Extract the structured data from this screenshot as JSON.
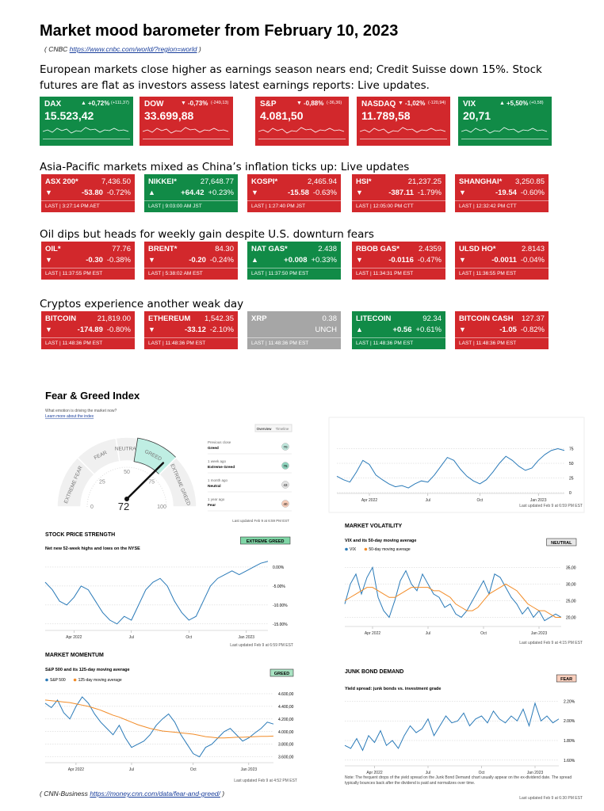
{
  "title": "Market mood barometer from February 10, 2023",
  "source_top": {
    "open": "( CNBC",
    "url": "https://www.cnbc.com/world/?region=world",
    "close": ")"
  },
  "sections": [
    {
      "heading": "European markets close higher as earnings season nears end; Credit Suisse down 15%. Stock futures are flat as investors assess latest earnings reports: Live updates.",
      "tiles": [
        {
          "name": "DAX",
          "arrow": "▲",
          "change_pct": "+0,72%",
          "change_abs": "(+111,37)",
          "value": "15.523,42",
          "color": "#118b47"
        },
        {
          "name": "DOW",
          "arrow": "▼",
          "change_pct": "-0,73%",
          "change_abs": "(-249,13)",
          "value": "33.699,88",
          "color": "#d2282c"
        },
        {
          "name": "S&P",
          "arrow": "▼",
          "change_pct": "-0,88%",
          "change_abs": "(-36,36)",
          "value": "4.081,50",
          "color": "#d2282c"
        },
        {
          "name": "NASDAQ",
          "arrow": "▼",
          "change_pct": "-1,02%",
          "change_abs": "(-120,94)",
          "value": "11.789,58",
          "color": "#d2282c"
        },
        {
          "name": "VIX",
          "arrow": "▲",
          "change_pct": "+5,50%",
          "change_abs": "(+0,58)",
          "value": "20,71",
          "color": "#118b47"
        }
      ]
    },
    {
      "heading": "Asia-Pacific markets mixed as China’s inflation ticks up: Live updates",
      "tiles": [
        {
          "name": "ASX 200*",
          "value": "7,436.50",
          "arrow": "▼",
          "change": "-53.80",
          "pct": "-0.72%",
          "last": "LAST | 3:27:14 PM AET",
          "color": "#d2282c"
        },
        {
          "name": "NIKKEI*",
          "value": "27,648.77",
          "arrow": "▲",
          "change": "+64.42",
          "pct": "+0.23%",
          "last": "LAST | 9:03:00 AM JST",
          "color": "#118b47"
        },
        {
          "name": "KOSPI*",
          "value": "2,465.94",
          "arrow": "▼",
          "change": "-15.58",
          "pct": "-0.63%",
          "last": "LAST | 1:27:40 PM JST",
          "color": "#d2282c"
        },
        {
          "name": "HSI*",
          "value": "21,237.25",
          "arrow": "▼",
          "change": "-387.11",
          "pct": "-1.79%",
          "last": "LAST | 12:05:00 PM CTT",
          "color": "#d2282c"
        },
        {
          "name": "SHANGHAI*",
          "value": "3,250.85",
          "arrow": "▼",
          "change": "-19.54",
          "pct": "-0.60%",
          "last": "LAST | 12:32:42 PM CTT",
          "color": "#d2282c"
        }
      ]
    },
    {
      "heading": "Oil dips but heads for weekly gain despite U.S. downturn fears",
      "tiles": [
        {
          "name": "OIL*",
          "value": "77.76",
          "arrow": "▼",
          "change": "-0.30",
          "pct": "-0.38%",
          "last": "LAST | 11:37:55 PM EST",
          "color": "#d2282c"
        },
        {
          "name": "BRENT*",
          "value": "84.30",
          "arrow": "▼",
          "change": "-0.20",
          "pct": "-0.24%",
          "last": "LAST | 5:38:02 AM EST",
          "color": "#d2282c"
        },
        {
          "name": "NAT GAS*",
          "value": "2.438",
          "arrow": "▲",
          "change": "+0.008",
          "pct": "+0.33%",
          "last": "LAST | 11:37:50 PM EST",
          "color": "#118b47"
        },
        {
          "name": "RBOB GAS*",
          "value": "2.4359",
          "arrow": "▼",
          "change": "-0.0116",
          "pct": "-0.47%",
          "last": "LAST | 11:34:31 PM EST",
          "color": "#d2282c"
        },
        {
          "name": "ULSD HO*",
          "value": "2.8143",
          "arrow": "▼",
          "change": "-0.0011",
          "pct": "-0.04%",
          "last": "LAST | 11:36:55 PM EST",
          "color": "#d2282c"
        }
      ]
    },
    {
      "heading": "Cryptos experience another weak day",
      "tiles": [
        {
          "name": "BITCOIN",
          "value": "21,819.00",
          "arrow": "▼",
          "change": "-174.89",
          "pct": "-0.80%",
          "last": "LAST | 11:48:36 PM EST",
          "color": "#d2282c"
        },
        {
          "name": "ETHEREUM",
          "value": "1,542.35",
          "arrow": "▼",
          "change": "-33.12",
          "pct": "-2.10%",
          "last": "LAST | 11:48:36 PM EST",
          "color": "#d2282c"
        },
        {
          "name": "XRP",
          "value": "0.38",
          "change": "UNCH",
          "last": "LAST | 11:48:36 PM EST",
          "color": "#a6a6a6"
        },
        {
          "name": "LITECOIN",
          "value": "92.34",
          "arrow": "▲",
          "change": "+0.56",
          "pct": "+0.61%",
          "last": "LAST | 11:48:36 PM EST",
          "color": "#118b47"
        },
        {
          "name": "BITCOIN CASH",
          "value": "127.37",
          "arrow": "▼",
          "change": "-1.05",
          "pct": "-0.82%",
          "last": "LAST | 11:48:36 PM EST",
          "color": "#d2282c"
        }
      ]
    }
  ],
  "fear_greed": {
    "title": "Fear & Greed Index",
    "subtitle": "What emotion is driving the market now?",
    "link": "Learn more about the index",
    "buttons": [
      "Overview",
      "Timeline"
    ],
    "zones": [
      {
        "label": "EXTREME FEAR",
        "from": 0,
        "to": 25
      },
      {
        "label": "FEAR",
        "from": 25,
        "to": 45
      },
      {
        "label": "NEUTRAL",
        "from": 45,
        "to": 55
      },
      {
        "label": "GREED",
        "from": 55,
        "to": 75
      },
      {
        "label": "EXTREME GREED",
        "from": 75,
        "to": 100
      }
    ],
    "scale": [
      0,
      25,
      50,
      75,
      100
    ],
    "value": 72,
    "history": [
      {
        "period": "Previous close",
        "label": "Greed",
        "value": 70,
        "color": "#bfe6dc"
      },
      {
        "period": "1 week ago",
        "label": "Extreme Greed",
        "value": 76,
        "color": "#8fd3bd"
      },
      {
        "period": "1 month ago",
        "label": "Neutral",
        "value": 43,
        "color": "#e4e4e4"
      },
      {
        "period": "1 year ago",
        "label": "Fear",
        "value": 40,
        "color": "#f7cdb9"
      }
    ],
    "updated": "Last updated Feb 9 at 6:59 PM EST"
  },
  "chart_data": [
    {
      "type": "line",
      "grid": true,
      "series": [
        {
          "color": "#2a7ab8",
          "values": [
            28,
            22,
            18,
            35,
            55,
            48,
            30,
            22,
            15,
            10,
            12,
            8,
            15,
            20,
            18,
            30,
            45,
            60,
            55,
            40,
            28,
            20,
            15,
            22,
            35,
            50,
            62,
            55,
            45,
            38,
            42,
            55,
            65,
            72,
            75,
            72
          ]
        }
      ],
      "ylim": [
        0,
        100
      ],
      "yticks": [
        75,
        50,
        25,
        0
      ],
      "xlim": [
        0,
        35
      ],
      "xticks": [
        {
          "value": 5,
          "label": "Apr 2022"
        },
        {
          "value": 14,
          "label": "Jul"
        },
        {
          "value": 22,
          "label": "Oct"
        },
        {
          "value": 31,
          "label": "Jan 2023"
        }
      ],
      "updated": "Last updated Feb 9 at 6:59 PM EST"
    },
    {
      "type": "line",
      "grid": true,
      "title": "STOCK PRICE STRENGTH",
      "badge": "EXTREME GREED",
      "badge_color": "#7fd6a6",
      "subtitle": "Net new 52-week highs and lows on the NYSE",
      "series": [
        {
          "color": "#2a7ab8",
          "values": [
            -4,
            -6,
            -9,
            -10,
            -8,
            -5,
            -6,
            -9,
            -12,
            -14,
            -15,
            -13,
            -14,
            -10,
            -6,
            -4,
            -3,
            -5,
            -9,
            -12,
            -14,
            -13,
            -9,
            -5,
            -3,
            -2,
            -1,
            -2,
            -1,
            0,
            1,
            1.5
          ]
        }
      ],
      "ylim": [
        -16.5,
        2.5
      ],
      "yticks": [
        {
          "value": 0,
          "label": "0.00%"
        },
        {
          "value": -5,
          "label": "-5.00%"
        },
        {
          "value": -10,
          "label": "-10.00%"
        },
        {
          "value": -15,
          "label": "-15.00%"
        }
      ],
      "xlim": [
        0,
        31
      ],
      "xticks": [
        {
          "value": 4,
          "label": "Apr 2022"
        },
        {
          "value": 12,
          "label": "Jul"
        },
        {
          "value": 20,
          "label": "Oct"
        },
        {
          "value": 28,
          "label": "Jan 2023"
        }
      ],
      "updated": "Last updated Feb 9 at 6:59 PM EST"
    },
    {
      "type": "line",
      "grid": true,
      "title": "MARKET VOLATILITY",
      "badge": "NEUTRAL",
      "badge_color": "#e8e8e8",
      "subtitle": "VIX and its 50-day moving average",
      "series": [
        {
          "name": "VIX",
          "color": "#2a7ab8",
          "values": [
            24,
            30,
            33,
            27,
            32,
            35,
            26,
            22,
            20,
            25,
            31,
            34,
            30,
            28,
            33,
            30,
            27,
            26,
            23,
            24,
            21,
            20,
            22,
            25,
            28,
            31,
            27,
            33,
            32,
            29,
            26,
            24,
            21,
            23,
            20,
            22,
            19,
            20,
            21,
            20
          ]
        },
        {
          "name": "50-day moving average",
          "color": "#f28c28",
          "values": [
            25,
            26,
            27,
            28,
            29,
            29,
            28,
            27,
            26,
            26,
            27,
            28,
            29,
            29,
            29,
            29,
            28,
            28,
            27,
            26,
            24,
            23,
            22,
            22,
            23,
            25,
            27,
            28,
            29,
            30,
            29,
            28,
            26,
            24,
            23,
            22,
            22,
            21,
            20,
            20
          ]
        }
      ],
      "ylim": [
        17.5,
        37
      ],
      "yticks": [
        {
          "value": 35,
          "label": "35,00"
        },
        {
          "value": 30,
          "label": "30,00"
        },
        {
          "value": 25,
          "label": "25,00"
        },
        {
          "value": 20,
          "label": "20,00"
        }
      ],
      "xlim": [
        0,
        39
      ],
      "xticks": [
        {
          "value": 5,
          "label": "Apr 2022"
        },
        {
          "value": 15,
          "label": "Jul"
        },
        {
          "value": 25,
          "label": "Oct"
        },
        {
          "value": 35,
          "label": "Jan 2023"
        }
      ],
      "updated": "Last updated Feb 9 at 4:15 PM EST"
    },
    {
      "type": "line",
      "grid": true,
      "title": "MARKET MOMENTUM",
      "badge": "GREED",
      "badge_color": "#a9e3c3",
      "subtitle": "S&P 500 and its 125-day moving average",
      "series": [
        {
          "name": "S&P 500",
          "color": "#2a7ab8",
          "values": [
            4450,
            4380,
            4500,
            4300,
            4200,
            4400,
            4550,
            4450,
            4280,
            4150,
            4050,
            3950,
            4100,
            3900,
            3750,
            3800,
            3850,
            3950,
            4100,
            4200,
            4280,
            4150,
            3950,
            3800,
            3650,
            3600,
            3750,
            3800,
            3900,
            4000,
            4050,
            3950,
            3850,
            3900,
            3980,
            4050,
            4150,
            4120
          ]
        },
        {
          "name": "125-day moving average",
          "color": "#f28c28",
          "values": [
            4500,
            4490,
            4480,
            4470,
            4460,
            4440,
            4420,
            4400,
            4370,
            4340,
            4300,
            4260,
            4230,
            4190,
            4150,
            4110,
            4080,
            4050,
            4030,
            4010,
            4000,
            3990,
            3980,
            3970,
            3960,
            3940,
            3920,
            3910,
            3900,
            3900,
            3905,
            3910,
            3910,
            3915,
            3920,
            3925,
            3925,
            3930
          ]
        }
      ],
      "ylim": [
        3520,
        4700
      ],
      "yticks": [
        {
          "value": 4600,
          "label": "4.600,00"
        },
        {
          "value": 4400,
          "label": "4.400,00"
        },
        {
          "value": 4200,
          "label": "4.200,00"
        },
        {
          "value": 4000,
          "label": "4.000,00"
        },
        {
          "value": 3800,
          "label": "3.800,00"
        },
        {
          "value": 3600,
          "label": "3.600,00"
        }
      ],
      "xlim": [
        0,
        37
      ],
      "xticks": [
        {
          "value": 5,
          "label": "Apr 2022"
        },
        {
          "value": 14,
          "label": "Jul"
        },
        {
          "value": 24,
          "label": "Oct"
        },
        {
          "value": 33,
          "label": "Jan 2023"
        }
      ],
      "updated": "Last updated Feb 9 at 4:52 PM EST"
    },
    {
      "type": "line",
      "grid": true,
      "title": "JUNK BOND DEMAND",
      "badge": "FEAR",
      "badge_color": "#f9cfbd",
      "subtitle": "Yield spread: junk bonds vs. investment grade",
      "series": [
        {
          "color": "#2a7ab8",
          "values": [
            1.75,
            1.72,
            1.82,
            1.7,
            1.85,
            1.78,
            1.9,
            1.75,
            1.8,
            1.72,
            1.85,
            1.95,
            1.88,
            1.92,
            2.02,
            1.85,
            1.95,
            2.05,
            1.98,
            2.0,
            2.08,
            1.95,
            2.02,
            2.05,
            1.98,
            2.1,
            2.02,
            1.98,
            2.05,
            2.0,
            2.12,
            1.95,
            2.18,
            2.0,
            2.05,
            1.98,
            2.02
          ]
        }
      ],
      "ylim": [
        1.55,
        2.26
      ],
      "yticks": [
        {
          "value": 2.2,
          "label": "2.20%"
        },
        {
          "value": 2.0,
          "label": "2.00%"
        },
        {
          "value": 1.8,
          "label": "1.80%"
        },
        {
          "value": 1.6,
          "label": "1.60%"
        }
      ],
      "xlim": [
        0,
        36
      ],
      "xticks": [
        {
          "value": 5,
          "label": "Apr 2022"
        },
        {
          "value": 14,
          "label": "Jul"
        },
        {
          "value": 23,
          "label": "Oct"
        },
        {
          "value": 32,
          "label": "Jan 2023"
        }
      ],
      "note": "Note: The frequent drops of the yield spread on the Junk Bond Demand chart usually appear on the ex-dividend date. The spread typically bounces back after the dividend is paid and normalizes over time.",
      "updated": "Last updated Feb 9 at 6:30 PM EST"
    }
  ],
  "source_bottom": {
    "open": "( CNN-Business",
    "url": "https://money.cnn.com/data/fear-and-greed/",
    "close": ")"
  }
}
